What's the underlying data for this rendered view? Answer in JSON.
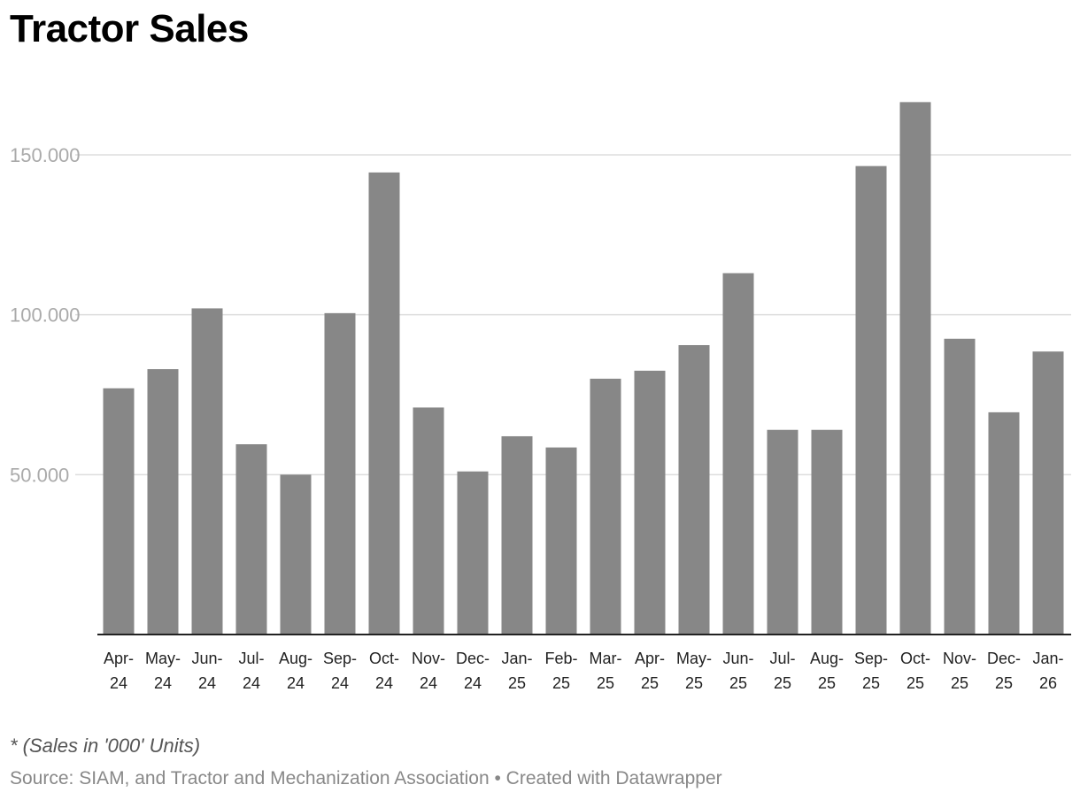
{
  "header": {
    "title": "Tractor Sales"
  },
  "footer": {
    "note": "* (Sales in '000' Units)",
    "source_prefix": "Source: ",
    "source": "SIAM, and Tractor and Mechanization Association",
    "separator": " • ",
    "credit": "Created with Datawrapper"
  },
  "colors": {
    "bar": "#878787",
    "grid": "#dddddd",
    "axis": "#222222"
  },
  "chart_data": {
    "type": "bar",
    "title": "Tractor Sales",
    "xlabel": "",
    "ylabel": "",
    "ylim": [
      0,
      170000
    ],
    "yticks": [
      50000,
      100000,
      150000
    ],
    "ytick_labels": [
      "50.000",
      "100.000",
      "150.000"
    ],
    "categories": [
      [
        "Apr-",
        "24"
      ],
      [
        "May-",
        "24"
      ],
      [
        "Jun-",
        "24"
      ],
      [
        "Jul-",
        "24"
      ],
      [
        "Aug-",
        "24"
      ],
      [
        "Sep-",
        "24"
      ],
      [
        "Oct-",
        "24"
      ],
      [
        "Nov-",
        "24"
      ],
      [
        "Dec-",
        "24"
      ],
      [
        "Jan-",
        "25"
      ],
      [
        "Feb-",
        "25"
      ],
      [
        "Mar-",
        "25"
      ],
      [
        "Apr-",
        "25"
      ],
      [
        "May-",
        "25"
      ],
      [
        "Jun-",
        "25"
      ],
      [
        "Jul-",
        "25"
      ],
      [
        "Aug-",
        "25"
      ],
      [
        "Sep-",
        "25"
      ],
      [
        "Oct-",
        "25"
      ],
      [
        "Nov-",
        "25"
      ],
      [
        "Dec-",
        "25"
      ],
      [
        "Jan-",
        "26"
      ]
    ],
    "values": [
      77000,
      83000,
      102000,
      59500,
      50000,
      100500,
      144500,
      71000,
      51000,
      62000,
      58500,
      80000,
      82500,
      90500,
      113000,
      64000,
      64000,
      146500,
      166500,
      92500,
      69500,
      88500
    ],
    "grid": true
  }
}
